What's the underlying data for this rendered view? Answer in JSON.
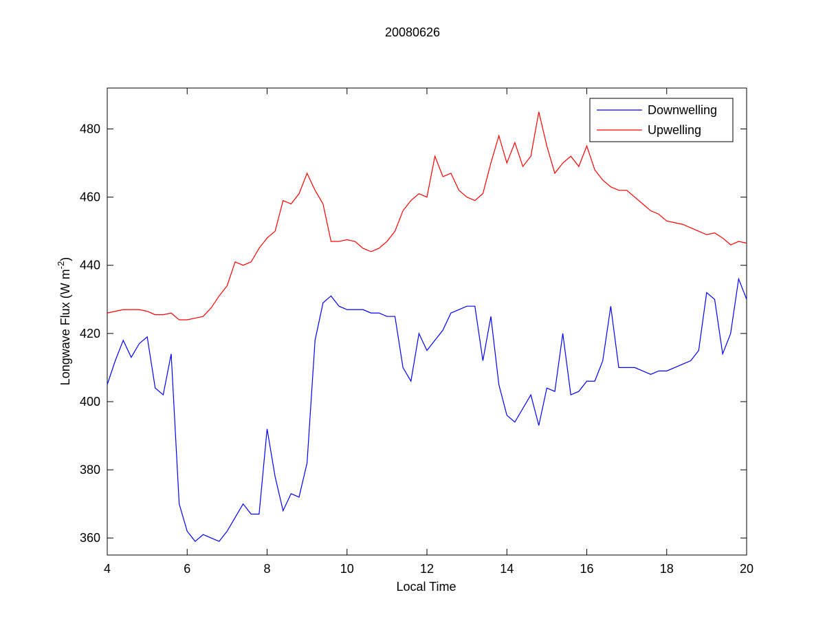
{
  "chart_data": {
    "type": "line",
    "title": "20080626",
    "x_label": "Local Time",
    "y_label": {
      "text": "Longwave Flux (W m",
      "superscript": "-2",
      "suffix": ")"
    },
    "x": [
      4.0,
      4.2,
      4.4,
      4.6,
      4.8,
      5.0,
      5.2,
      5.4,
      5.6,
      5.8,
      6.0,
      6.2,
      6.4,
      6.6,
      6.8,
      7.0,
      7.2,
      7.4,
      7.6,
      7.8,
      8.0,
      8.2,
      8.4,
      8.6,
      8.8,
      9.0,
      9.2,
      9.4,
      9.6,
      9.8,
      10.0,
      10.2,
      10.4,
      10.6,
      10.8,
      11.0,
      11.2,
      11.4,
      11.6,
      11.8,
      12.0,
      12.2,
      12.4,
      12.6,
      12.8,
      13.0,
      13.2,
      13.4,
      13.6,
      13.8,
      14.0,
      14.2,
      14.4,
      14.6,
      14.8,
      15.0,
      15.2,
      15.4,
      15.6,
      15.8,
      16.0,
      16.2,
      16.4,
      16.6,
      16.8,
      17.0,
      17.2,
      17.4,
      17.6,
      17.8,
      18.0,
      18.2,
      18.4,
      18.6,
      18.8,
      19.0,
      19.2,
      19.4,
      19.6,
      19.8,
      20.0
    ],
    "series": [
      {
        "name": "Downwelling",
        "color": "#0000ff",
        "values": [
          405,
          412,
          418,
          413,
          417,
          419,
          404,
          402,
          414,
          370,
          362,
          359,
          361,
          360,
          359,
          362,
          366,
          370,
          367,
          367,
          392,
          378,
          368,
          373,
          372,
          382,
          418,
          429,
          431,
          428,
          427,
          427,
          427,
          426,
          426,
          425,
          425,
          410,
          406,
          420,
          415,
          418,
          421,
          426,
          427,
          428,
          428,
          412,
          425,
          405,
          396,
          394,
          398,
          402,
          393,
          404,
          403,
          420,
          402,
          403,
          406,
          406,
          412,
          428,
          410,
          410,
          410,
          409,
          408,
          409,
          409,
          410,
          411,
          412,
          415,
          432,
          430,
          414,
          420,
          436,
          430
        ]
      },
      {
        "name": "Upwelling",
        "color": "#ff0000",
        "values": [
          426,
          426.5,
          427,
          427,
          427,
          426.5,
          425.5,
          425.5,
          426,
          424,
          424,
          424.5,
          425,
          427.5,
          431,
          434,
          441,
          440,
          441,
          445,
          448,
          450,
          459,
          458,
          461,
          467,
          462,
          458,
          447,
          447,
          447.5,
          447,
          445,
          444,
          445,
          447,
          450,
          456,
          459,
          461,
          460,
          472,
          466,
          467,
          462,
          460,
          459,
          461,
          470,
          478,
          470,
          476,
          469,
          472,
          485,
          475,
          467,
          470,
          472,
          469,
          475,
          468,
          465,
          463,
          462,
          462,
          460,
          458,
          456,
          455,
          453,
          452.5,
          452,
          451,
          450,
          449,
          449.5,
          448,
          446,
          447,
          446.5
        ]
      }
    ],
    "xlim": [
      4,
      20
    ],
    "xticks": [
      4,
      6,
      8,
      10,
      12,
      14,
      16,
      18,
      20
    ],
    "ylim": [
      355,
      492
    ],
    "yticks": [
      360,
      380,
      400,
      420,
      440,
      460,
      480
    ],
    "legend": "upper right",
    "grid": false
  }
}
